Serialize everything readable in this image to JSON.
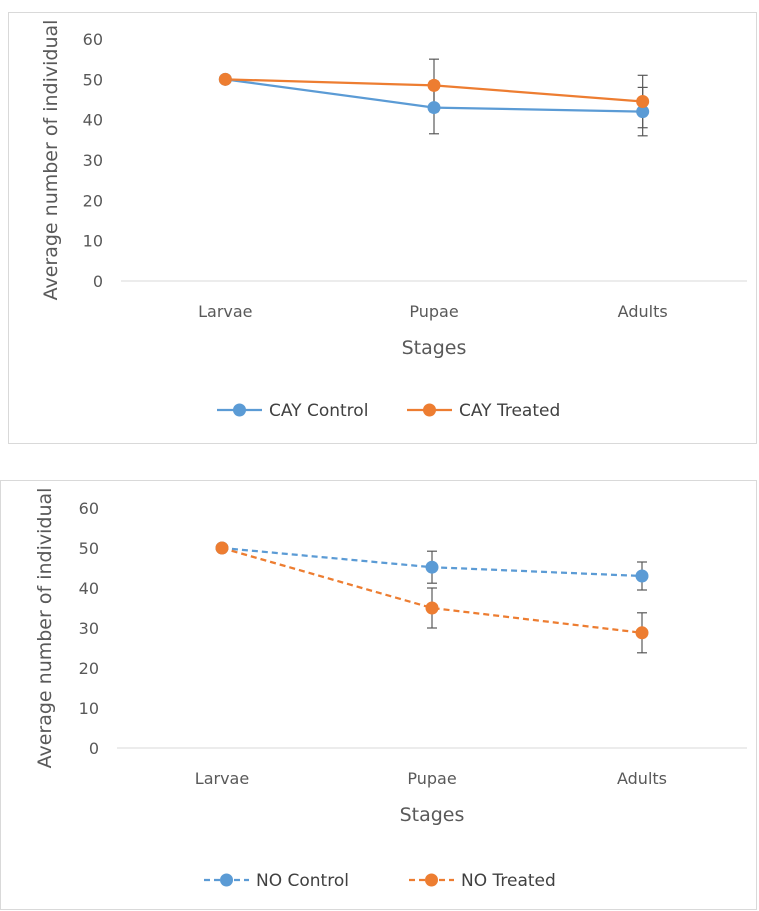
{
  "colors": {
    "control": "#5b9bd5",
    "treated": "#ed7d31",
    "axis": "#d9d9d9",
    "text": "#595959",
    "errorbar": "#595959"
  },
  "chart_data": [
    {
      "type": "line",
      "categories": [
        "Larvae",
        "Pupae",
        "Adults"
      ],
      "xlabel": "Stages",
      "ylabel": "Average number of individual",
      "ylim": [
        0,
        60
      ],
      "yticks": [
        0,
        10,
        20,
        30,
        40,
        50,
        60
      ],
      "grid": false,
      "legend_position": "bottom",
      "line_style": "solid",
      "series": [
        {
          "name": "CAY Control",
          "color": "#5b9bd5",
          "values": [
            50,
            43,
            42
          ],
          "errors": [
            0,
            6.5,
            6
          ]
        },
        {
          "name": "CAY Treated",
          "color": "#ed7d31",
          "values": [
            50,
            48.5,
            44.5
          ],
          "errors": [
            0,
            6.5,
            6.5
          ]
        }
      ]
    },
    {
      "type": "line",
      "categories": [
        "Larvae",
        "Pupae",
        "Adults"
      ],
      "xlabel": "Stages",
      "ylabel": "Average number of individual",
      "ylim": [
        0,
        60
      ],
      "yticks": [
        0,
        10,
        20,
        30,
        40,
        50,
        60
      ],
      "grid": false,
      "legend_position": "bottom",
      "line_style": "dashed",
      "series": [
        {
          "name": "NO Control",
          "color": "#5b9bd5",
          "values": [
            50,
            45.2,
            43
          ],
          "errors": [
            0,
            4,
            3.5
          ]
        },
        {
          "name": "NO Treated",
          "color": "#ed7d31",
          "values": [
            50,
            35,
            28.8
          ],
          "errors": [
            0,
            5,
            5
          ]
        }
      ]
    }
  ]
}
